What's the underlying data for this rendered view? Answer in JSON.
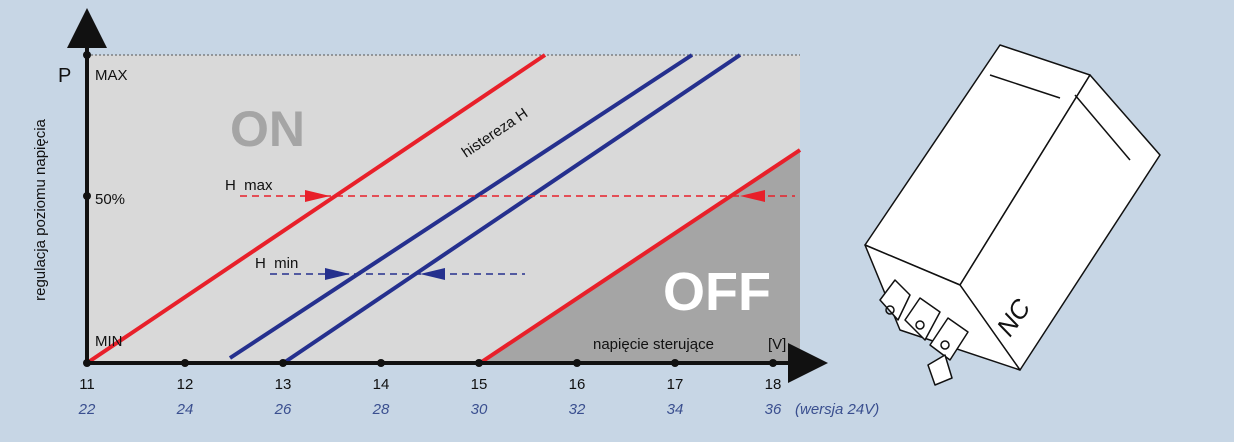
{
  "axis": {
    "y_symbol": "P",
    "y_label": "regulacja poziomu napięcia",
    "y_levels": [
      "MAX",
      "50%",
      "MIN"
    ],
    "x_label": "napięcie sterujące",
    "x_unit": "[V]",
    "x_ticks_12v": [
      11,
      12,
      13,
      14,
      15,
      16,
      17,
      18
    ],
    "x_ticks_24v": [
      22,
      24,
      26,
      28,
      30,
      32,
      34,
      36
    ],
    "x_note": "(wersja 24V)"
  },
  "regions": {
    "on": "ON",
    "off": "OFF"
  },
  "annotations": {
    "hysteresis": "histereza H",
    "h_max": "H  max",
    "h_min": "H  min"
  },
  "device": {
    "label": "NC"
  }
}
